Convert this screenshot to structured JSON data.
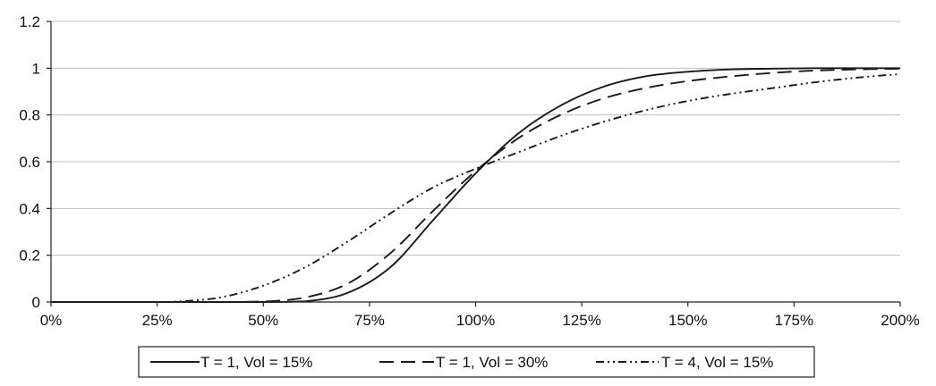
{
  "chart_data": {
    "type": "line",
    "title": "",
    "xlabel": "",
    "ylabel": "",
    "xlim": [
      0,
      200
    ],
    "ylim": [
      0,
      1.2
    ],
    "x_ticks": [
      0,
      25,
      50,
      75,
      100,
      125,
      150,
      175,
      200
    ],
    "x_tick_labels": [
      "0%",
      "25%",
      "50%",
      "75%",
      "100%",
      "125%",
      "150%",
      "175%",
      "200%"
    ],
    "y_ticks": [
      0,
      0.2,
      0.4,
      0.6,
      0.8,
      1,
      1.2
    ],
    "y_tick_labels": [
      "0",
      "0.2",
      "0.4",
      "0.6",
      "0.8",
      "1",
      "1.2"
    ],
    "grid": "horizontal",
    "legend_position": "bottom",
    "x": [
      0,
      25,
      30,
      40,
      50,
      60,
      70,
      80,
      90,
      100,
      110,
      120,
      130,
      140,
      150,
      160,
      170,
      180,
      190,
      200
    ],
    "series": [
      {
        "name": "T = 1, Vol = 15%",
        "dash": "solid",
        "values": [
          0,
          0,
          0,
          0,
          0,
          0.003,
          0.04,
          0.15,
          0.35,
          0.55,
          0.72,
          0.84,
          0.92,
          0.965,
          0.985,
          0.995,
          0.998,
          1.0,
          1.0,
          1.0
        ]
      },
      {
        "name": "T = 1, Vol = 30%",
        "dash": "dashed",
        "values": [
          0,
          0,
          0,
          0,
          0.002,
          0.02,
          0.08,
          0.21,
          0.39,
          0.56,
          0.7,
          0.8,
          0.87,
          0.915,
          0.945,
          0.965,
          0.98,
          0.99,
          0.995,
          0.998
        ]
      },
      {
        "name": "T = 4, Vol = 15%",
        "dash": "dashdotdot",
        "values": [
          0,
          0,
          0.002,
          0.02,
          0.07,
          0.15,
          0.26,
          0.38,
          0.49,
          0.57,
          0.64,
          0.71,
          0.77,
          0.82,
          0.86,
          0.89,
          0.915,
          0.94,
          0.96,
          0.975
        ]
      }
    ]
  }
}
